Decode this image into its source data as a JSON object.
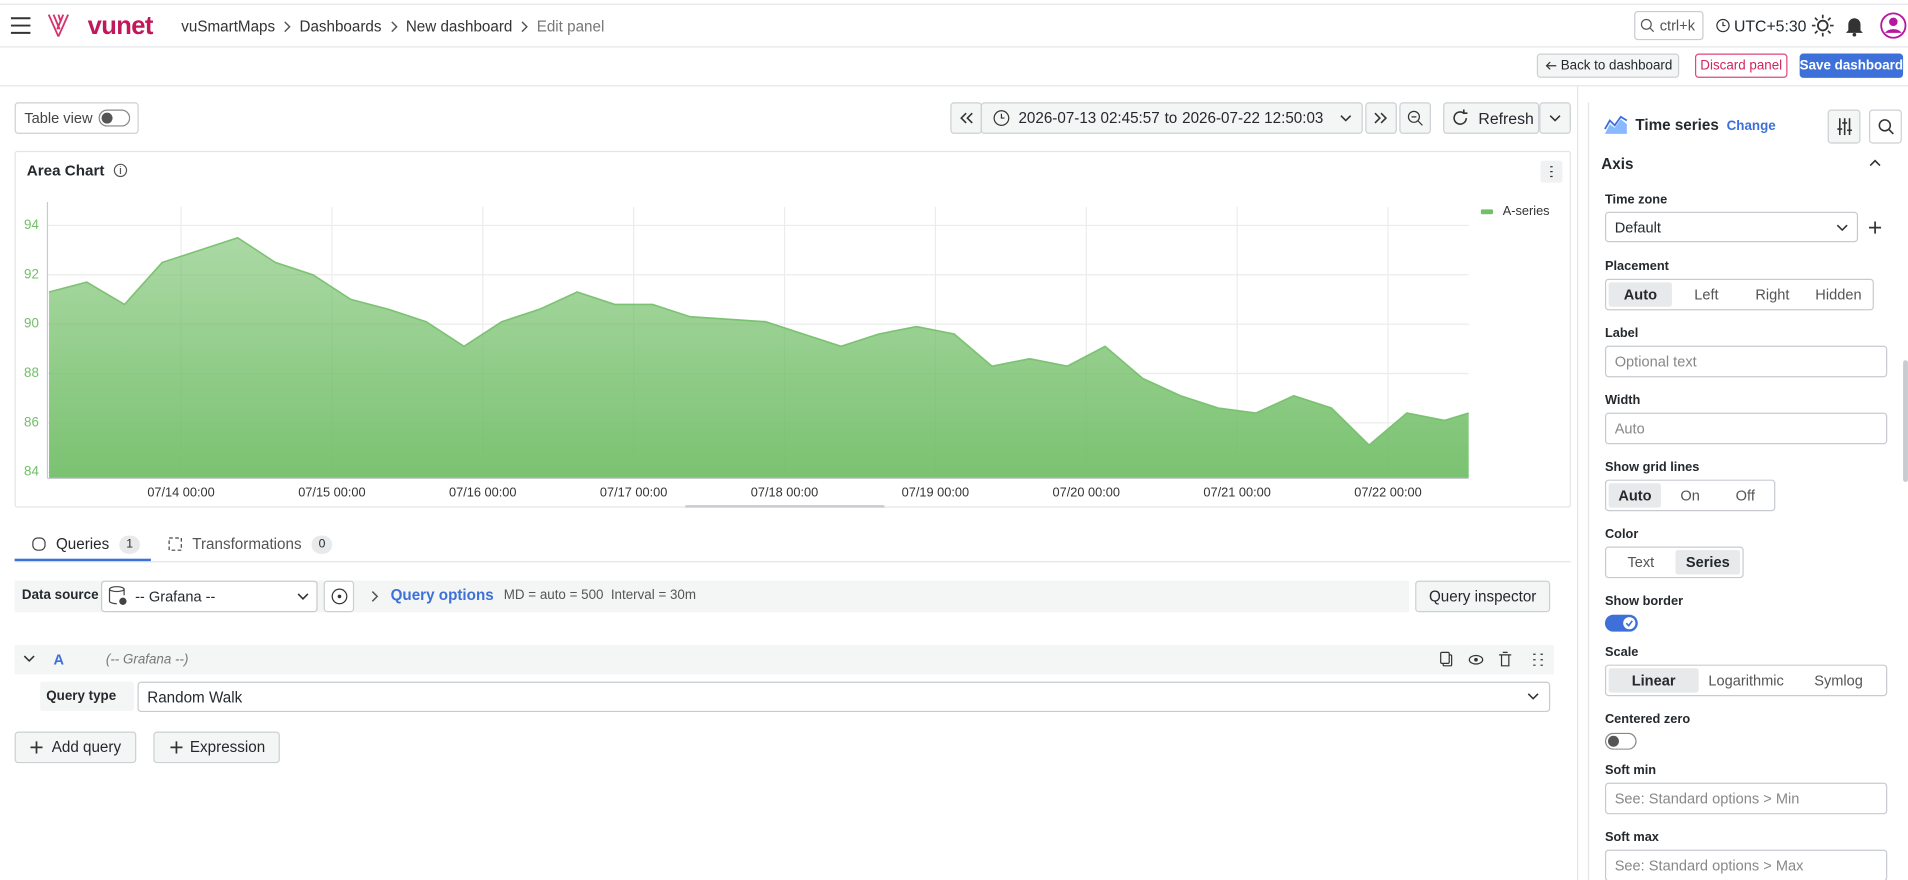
{
  "header": {
    "brand": "vunet",
    "breadcrumbs": [
      "vuSmartMaps",
      "Dashboards",
      "New dashboard",
      "Edit panel"
    ],
    "search": "ctrl+k",
    "timezone": "UTC+5:30"
  },
  "actions": {
    "back": "Back to dashboard",
    "discard": "Discard panel",
    "save": "Save dashboard"
  },
  "toolbar": {
    "table_view": "Table view",
    "time_from": "2026-07-13 02:45:57",
    "time_sep": "to",
    "time_to": "2026-07-22 12:50:03",
    "refresh": "Refresh"
  },
  "chart_data": {
    "type": "area",
    "title": "Area Chart",
    "x": [
      "07/13 03:00",
      "07/13 09:00",
      "07/13 15:00",
      "07/13 21:00",
      "07/14 03:00",
      "07/14 09:00",
      "07/14 15:00",
      "07/14 21:00",
      "07/15 03:00",
      "07/15 09:00",
      "07/15 15:00",
      "07/15 21:00",
      "07/16 03:00",
      "07/16 09:00",
      "07/16 15:00",
      "07/16 21:00",
      "07/17 03:00",
      "07/17 09:00",
      "07/17 15:00",
      "07/17 21:00",
      "07/18 03:00",
      "07/18 09:00",
      "07/18 15:00",
      "07/18 21:00",
      "07/19 03:00",
      "07/19 09:00",
      "07/19 15:00",
      "07/19 21:00",
      "07/20 03:00",
      "07/20 09:00",
      "07/20 15:00",
      "07/20 21:00",
      "07/21 03:00",
      "07/21 09:00",
      "07/21 15:00",
      "07/21 21:00",
      "07/22 03:00",
      "07/22 09:00",
      "07/22 12:50"
    ],
    "series": [
      {
        "name": "A-series",
        "color": "#73bf69",
        "values": [
          91.3,
          91.7,
          90.8,
          92.5,
          93.0,
          93.5,
          92.5,
          92.0,
          91.0,
          90.6,
          90.1,
          89.1,
          90.1,
          90.6,
          91.3,
          90.8,
          90.8,
          90.3,
          90.2,
          90.1,
          89.6,
          89.1,
          89.6,
          89.9,
          89.6,
          88.3,
          88.6,
          88.3,
          89.1,
          87.8,
          87.1,
          86.6,
          86.4,
          87.1,
          86.6,
          85.1,
          86.4,
          86.1,
          86.4
        ]
      }
    ],
    "xlim": [
      "07/13 02:45",
      "07/22 12:50"
    ],
    "xticks": [
      "07/14 00:00",
      "07/15 00:00",
      "07/16 00:00",
      "07/17 00:00",
      "07/18 00:00",
      "07/19 00:00",
      "07/20 00:00",
      "07/21 00:00",
      "07/22 00:00"
    ],
    "ylim": [
      83.75,
      94.75
    ],
    "yticks": [
      84,
      86,
      88,
      90,
      92,
      94
    ],
    "grid": true,
    "legend": "top-right"
  },
  "query_tabs": [
    {
      "label": "Queries",
      "count": 1
    },
    {
      "label": "Transformations",
      "count": 0
    }
  ],
  "query": {
    "data_source_label": "Data source",
    "data_source": "-- Grafana --",
    "options": "Query options",
    "md": "MD = auto = 500",
    "interval": "Interval = 30m",
    "inspector": "Query inspector",
    "ref": "A",
    "ref_source": "(-- Grafana --)",
    "type_label": "Query type",
    "type": "Random Walk",
    "add_query": "Add query",
    "expression": "Expression"
  },
  "options_pane": {
    "viz": "Time series",
    "change": "Change",
    "section": "Axis",
    "fields": [
      {
        "label": "Time zone",
        "kind": "select",
        "value": "Default"
      },
      {
        "label": "Placement",
        "kind": "radio",
        "options": [
          "Auto",
          "Left",
          "Right",
          "Hidden"
        ],
        "active": 0
      },
      {
        "label": "Label",
        "kind": "input",
        "placeholder": "Optional text"
      },
      {
        "label": "Width",
        "kind": "input",
        "placeholder": "Auto"
      },
      {
        "label": "Show grid lines",
        "kind": "radio",
        "options": [
          "Auto",
          "On",
          "Off"
        ],
        "active": 0
      },
      {
        "label": "Color",
        "kind": "radio",
        "options": [
          "Text",
          "Series"
        ],
        "active": 1
      },
      {
        "label": "Show border",
        "kind": "toggle",
        "on": true
      },
      {
        "label": "Scale",
        "kind": "radio",
        "options": [
          "Linear",
          "Logarithmic",
          "Symlog"
        ],
        "active": 0
      },
      {
        "label": "Centered zero",
        "kind": "toggle",
        "on": false
      },
      {
        "label": "Soft min",
        "kind": "input",
        "placeholder": "See: Standard options > Min"
      },
      {
        "label": "Soft max",
        "kind": "input",
        "placeholder": "See: Standard options > Max"
      }
    ]
  }
}
